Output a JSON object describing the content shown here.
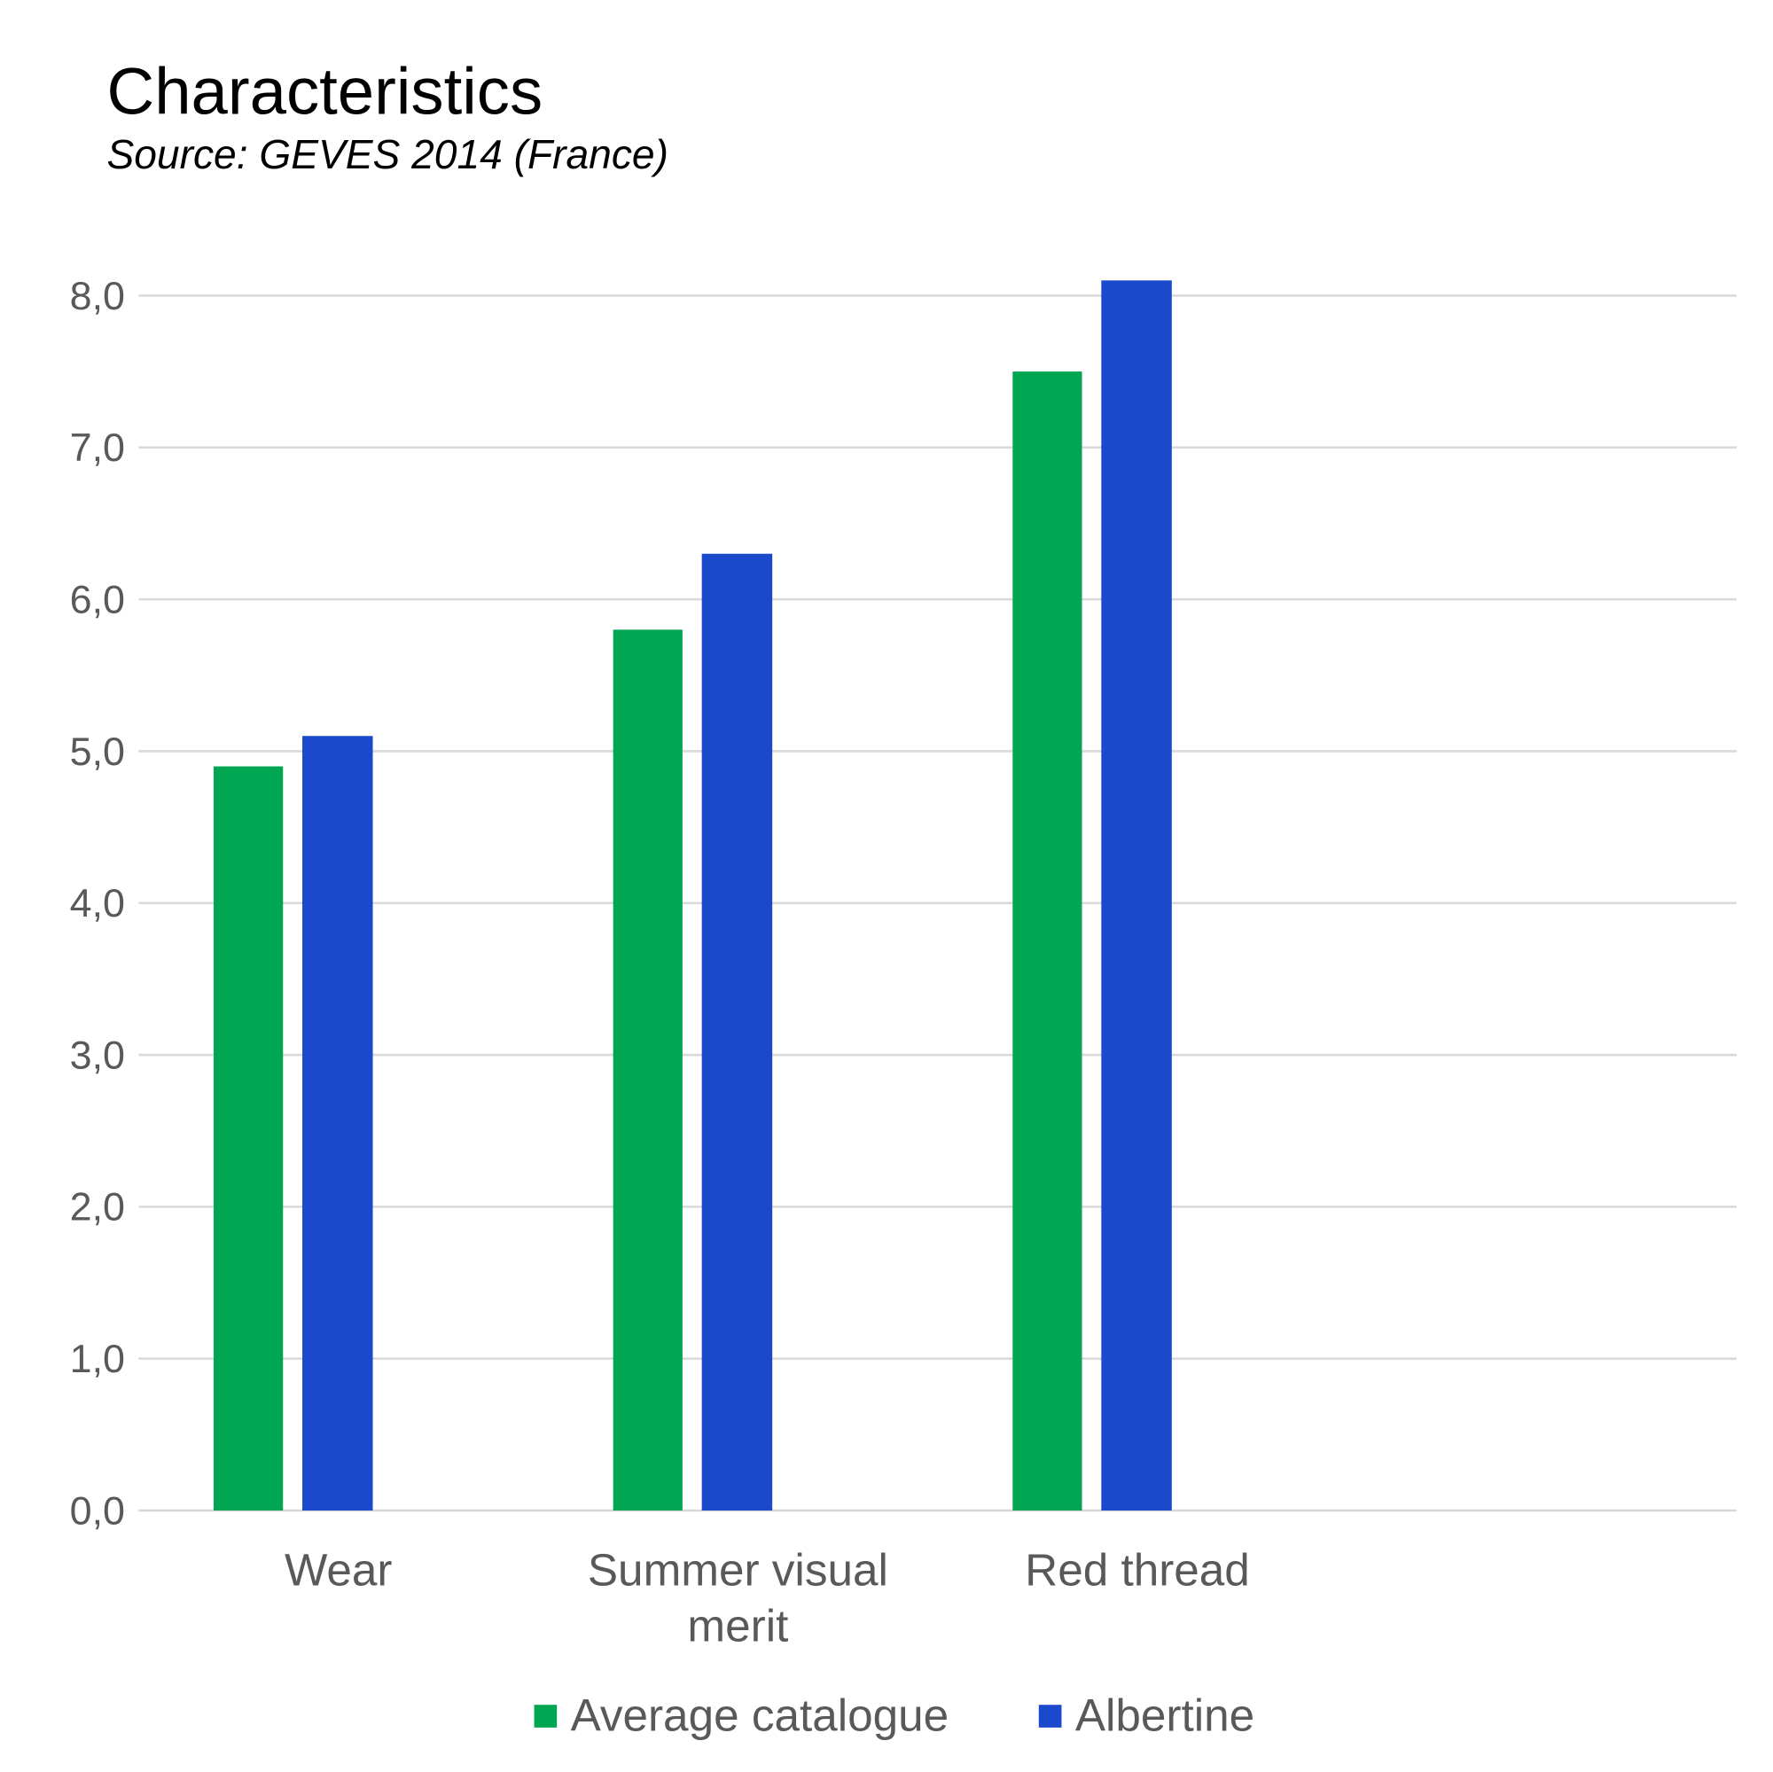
{
  "chart_data": {
    "type": "bar",
    "title": "Characteristics",
    "subtitle": "Source: GEVES 2014 (France)",
    "categories": [
      [
        "Wear"
      ],
      [
        "Summer visual",
        "merit"
      ],
      [
        "Red thread"
      ],
      [
        ""
      ]
    ],
    "series": [
      {
        "name": "Average catalogue",
        "color": "#00A651",
        "values": [
          4.9,
          5.8,
          7.5,
          null
        ]
      },
      {
        "name": "Albertine",
        "color": "#1A49CC",
        "values": [
          5.1,
          6.3,
          8.1,
          null
        ]
      }
    ],
    "ylim": [
      0,
      8
    ],
    "yticks": [
      "0,0",
      "1,0",
      "2,0",
      "3,0",
      "4,0",
      "5,0",
      "6,0",
      "7,0",
      "8,0"
    ],
    "grid": true,
    "legend": "bottom",
    "xlabel": "",
    "ylabel": ""
  }
}
